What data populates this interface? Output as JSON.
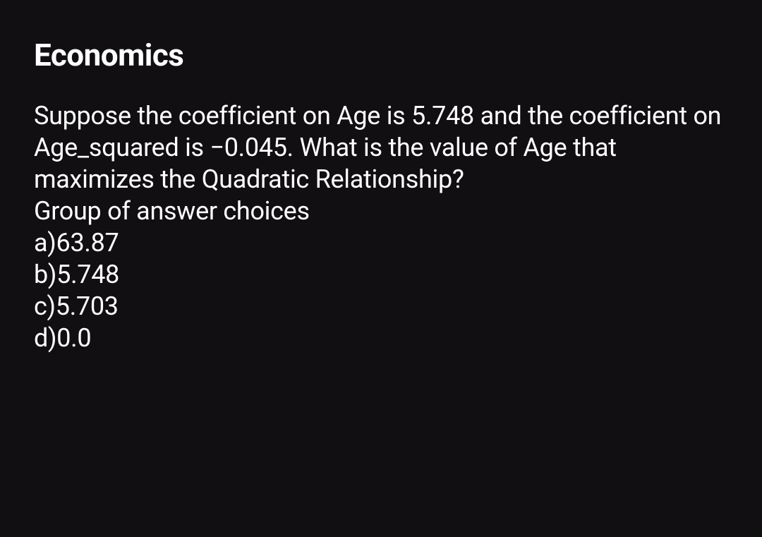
{
  "title": "Economics",
  "question": "Suppose the coefficient on Age is 5.748 and the coefficient on Age_squared is −0.045. What is the value of Age that maximizes the Quadratic Relationship?",
  "choices_label": "Group of answer choices",
  "choices": {
    "a": "a)63.87",
    "b": "b)5.748",
    "c": "c)5.703",
    "d": "d)0.0"
  }
}
